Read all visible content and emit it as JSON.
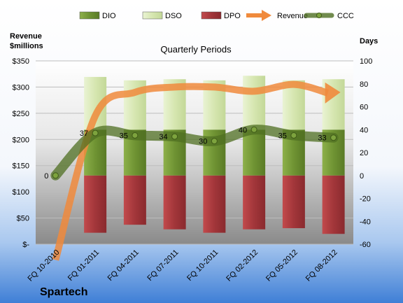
{
  "company": "Spartech",
  "chart_data": {
    "type": "bar",
    "title": "Quarterly Periods",
    "ylabel_left": "Revenue\n$millions",
    "ylabel_right": "Days",
    "legend_position": "top",
    "legend": [
      "DIO",
      "DSO",
      "DPO",
      "Revenue",
      "CCC"
    ],
    "categories": [
      "FQ 10-2010",
      "FQ 01-2011",
      "FQ 04-2011",
      "FQ 07-2011",
      "FQ 10-2011",
      "FQ 02-2012",
      "FQ 05-2012",
      "FQ 08-2012"
    ],
    "left_axis": {
      "min": 0,
      "max": 350,
      "step": 50,
      "ticks": [
        "$-",
        "$50",
        "$100",
        "$150",
        "$200",
        "$250",
        "$300",
        "$350"
      ]
    },
    "right_axis": {
      "min": -60,
      "max": 100,
      "step": 20,
      "ticks": [
        "-60",
        "-40",
        "-20",
        "0",
        "20",
        "40",
        "60",
        "80",
        "100"
      ]
    },
    "series": [
      {
        "name": "DIO",
        "kind": "bar-stack",
        "axis": "right",
        "values": [
          null,
          40,
          40,
          40,
          40,
          40,
          40,
          40
        ],
        "color": "#7a9a3a"
      },
      {
        "name": "DSO",
        "kind": "bar-stack",
        "axis": "right",
        "values": [
          null,
          46,
          43,
          44,
          43,
          47,
          43,
          44
        ],
        "color": "#d8e8b4"
      },
      {
        "name": "DPO",
        "kind": "bar-below",
        "axis": "right",
        "values": [
          null,
          -50,
          -43,
          -47,
          -50,
          -47,
          -46,
          -51
        ],
        "color": "#a83a3c"
      },
      {
        "name": "Revenue",
        "kind": "line",
        "axis": "left",
        "values": [
          -30,
          245,
          290,
          300,
          300,
          292,
          305,
          290
        ],
        "color": "#f08a3c"
      },
      {
        "name": "CCC",
        "kind": "line",
        "axis": "right",
        "values": [
          0,
          37,
          35,
          34,
          30,
          40,
          35,
          33
        ],
        "labels": [
          "0",
          "37",
          "35",
          "34",
          "30",
          "40",
          "35",
          "33"
        ],
        "color": "#5e7e2e"
      }
    ],
    "grid": true
  }
}
